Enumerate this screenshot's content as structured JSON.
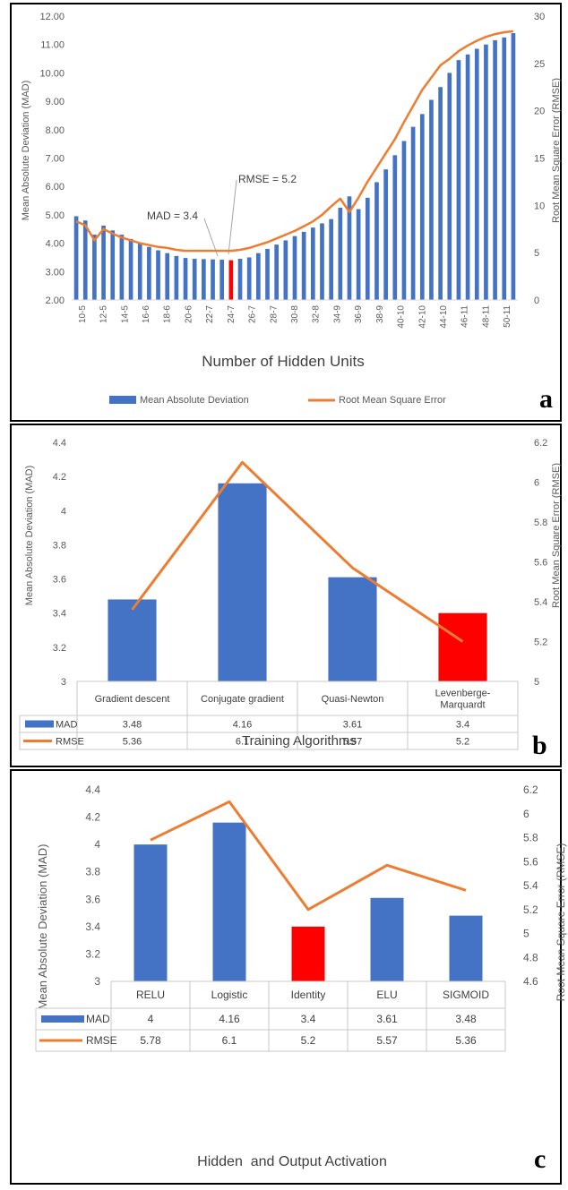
{
  "chart_data": [
    {
      "panel_letter": "a",
      "type": "bar",
      "xlabel": "Number of Hidden Units",
      "ylabel": "Mean Absolute Deviation (MAD)",
      "y2label": "Root Mean Square Error (RMSE)",
      "ylim": [
        2,
        12
      ],
      "y2lim": [
        0,
        30
      ],
      "yticks": [
        "2.00",
        "3.00",
        "4.00",
        "5.00",
        "6.00",
        "7.00",
        "8.00",
        "9.00",
        "10.00",
        "11.00",
        "12.00"
      ],
      "y2ticks": [
        "0",
        "5",
        "10",
        "15",
        "20",
        "25",
        "30"
      ],
      "xtick_labels": [
        "10-5",
        "12-5",
        "14-5",
        "16-6",
        "18-6",
        "20-6",
        "22-7",
        "24-7",
        "26-7",
        "28-7",
        "30-8",
        "32-8",
        "34-9",
        "36-9",
        "38-9",
        "40-10",
        "42-10",
        "44-10",
        "46-11",
        "48-11",
        "50-11"
      ],
      "grid": false,
      "legend_position": "bottom",
      "highlight_index": 17,
      "highlight_color": "#ff0000",
      "series": [
        {
          "name": "Mean Absolute Deviation",
          "kind": "bar",
          "axis": "left",
          "color": "#4472c4",
          "values": [
            4.95,
            4.8,
            4.3,
            4.62,
            4.45,
            4.3,
            4.15,
            4.0,
            3.87,
            3.75,
            3.65,
            3.55,
            3.48,
            3.45,
            3.44,
            3.43,
            3.42,
            3.4,
            3.45,
            3.5,
            3.65,
            3.8,
            3.95,
            4.1,
            4.25,
            4.4,
            4.55,
            4.7,
            4.85,
            5.25,
            5.65,
            5.2,
            5.6,
            6.15,
            6.6,
            7.1,
            7.6,
            8.1,
            8.55,
            9.05,
            9.5,
            10.0,
            10.45,
            10.65,
            10.85,
            11.0,
            11.15,
            11.25,
            11.4
          ]
        },
        {
          "name": "Root Mean Square Error",
          "kind": "line",
          "axis": "right",
          "color": "#ed7d31",
          "values": [
            8.3,
            7.9,
            6.3,
            7.5,
            7.0,
            6.6,
            6.3,
            6.0,
            5.8,
            5.6,
            5.5,
            5.3,
            5.2,
            5.2,
            5.2,
            5.2,
            5.2,
            5.2,
            5.3,
            5.5,
            5.8,
            6.1,
            6.5,
            6.9,
            7.3,
            7.8,
            8.3,
            9.0,
            9.9,
            10.7,
            9.3,
            10.8,
            12.5,
            14.0,
            15.5,
            17.0,
            18.8,
            20.5,
            22.2,
            23.5,
            24.8,
            25.5,
            26.3,
            26.9,
            27.4,
            27.8,
            28.1,
            28.3,
            28.4
          ]
        }
      ],
      "annotations": [
        "MAD = 3.4",
        "RMSE = 5.2"
      ]
    },
    {
      "panel_letter": "b",
      "type": "bar",
      "xlabel": "Training Algorithms",
      "ylabel": "Mean Absolute Deviation (MAD)",
      "y2label": "Root Mean Square Error (RMSE)",
      "ylim": [
        3,
        4.4
      ],
      "y2lim": [
        5,
        6.2
      ],
      "yticks": [
        "3",
        "3.2",
        "3.4",
        "3.6",
        "3.8",
        "4",
        "4.2",
        "4.4"
      ],
      "y2ticks": [
        "5",
        "5.2",
        "5.4",
        "5.6",
        "5.8",
        "6",
        "6.2"
      ],
      "categories": [
        "Gradient descent",
        "Conjugate gradient",
        "Quasi-Newton",
        "Levenberge-\nMarquardt"
      ],
      "grid": false,
      "legend_position": "data table",
      "highlight_index": 3,
      "highlight_color": "#ff0000",
      "series": [
        {
          "name": "MAD",
          "kind": "bar",
          "axis": "left",
          "color": "#4472c4",
          "values": [
            3.48,
            4.16,
            3.61,
            3.4
          ]
        },
        {
          "name": "RMSE",
          "kind": "line",
          "axis": "right",
          "color": "#ed7d31",
          "values": [
            5.36,
            6.1,
            5.57,
            5.2
          ]
        }
      ],
      "table_rows": [
        {
          "label": "MAD",
          "cells": [
            "3.48",
            "4.16",
            "3.61",
            "3.4"
          ]
        },
        {
          "label": "RMSE",
          "cells": [
            "5.36",
            "6.1",
            "5.57",
            "5.2"
          ]
        }
      ]
    },
    {
      "panel_letter": "c",
      "type": "bar",
      "xlabel": "Hidden  and Output Activation",
      "ylabel": "Mean Absolute Deviation (MAD)",
      "y2label": "Root Mean Square Error (RMSE)",
      "ylim": [
        3,
        4.4
      ],
      "y2lim": [
        4.6,
        6.2
      ],
      "yticks": [
        "3",
        "3.2",
        "3.4",
        "3.6",
        "3.8",
        "4",
        "4.2",
        "4.4"
      ],
      "y2ticks": [
        "4.6",
        "4.8",
        "5",
        "5.2",
        "5.4",
        "5.6",
        "5.8",
        "6",
        "6.2"
      ],
      "categories": [
        "RELU",
        "Logistic",
        "Identity",
        "ELU",
        "SIGMOID"
      ],
      "grid": false,
      "legend_position": "data table",
      "highlight_index": 2,
      "highlight_color": "#ff0000",
      "series": [
        {
          "name": "MAD",
          "kind": "bar",
          "axis": "left",
          "color": "#4472c4",
          "values": [
            4,
            4.16,
            3.4,
            3.61,
            3.48
          ]
        },
        {
          "name": "RMSE",
          "kind": "line",
          "axis": "right",
          "color": "#ed7d31",
          "values": [
            5.78,
            6.1,
            5.2,
            5.57,
            5.36
          ]
        }
      ],
      "table_rows": [
        {
          "label": "MAD",
          "cells": [
            "4",
            "4.16",
            "3.4",
            "3.61",
            "3.48"
          ]
        },
        {
          "label": "RMSE",
          "cells": [
            "5.78",
            "6.1",
            "5.2",
            "5.57",
            "5.36"
          ]
        }
      ]
    }
  ]
}
